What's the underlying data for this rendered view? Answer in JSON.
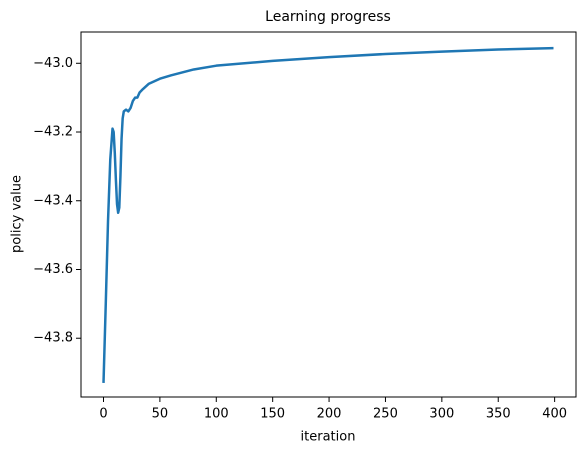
{
  "chart_data": {
    "type": "line",
    "title": "Learning progress",
    "x_label": "iteration",
    "y_label": "policy value",
    "x": [
      0,
      2,
      4,
      6,
      8,
      9,
      10,
      11,
      12,
      13,
      14,
      15,
      16,
      17,
      18,
      20,
      22,
      24,
      26,
      28,
      30,
      32,
      35,
      40,
      50,
      60,
      80,
      100,
      150,
      200,
      250,
      300,
      350,
      399
    ],
    "series": [
      {
        "name": "policy value",
        "color": "#1f77b4",
        "values": [
          -43.93,
          -43.7,
          -43.46,
          -43.28,
          -43.19,
          -43.2,
          -43.26,
          -43.34,
          -43.41,
          -43.435,
          -43.42,
          -43.33,
          -43.22,
          -43.16,
          -43.14,
          -43.135,
          -43.14,
          -43.13,
          -43.11,
          -43.1,
          -43.1,
          -43.085,
          -43.075,
          -43.06,
          -43.045,
          -43.035,
          -43.018,
          -43.007,
          -42.993,
          -42.982,
          -42.973,
          -42.966,
          -42.96,
          -42.956
        ]
      }
    ],
    "xlim": [
      -19.95,
      418.95
    ],
    "ylim": [
      -43.971,
      -42.909
    ],
    "xticks": [
      0,
      50,
      100,
      150,
      200,
      250,
      300,
      350,
      400
    ],
    "yticks": [
      {
        "value": -43.8,
        "label": "−43.8"
      },
      {
        "value": -43.6,
        "label": "−43.6"
      },
      {
        "value": -43.4,
        "label": "−43.4"
      },
      {
        "value": -43.2,
        "label": "−43.2"
      },
      {
        "value": -43.0,
        "label": "−43.0"
      }
    ],
    "grid": false
  }
}
